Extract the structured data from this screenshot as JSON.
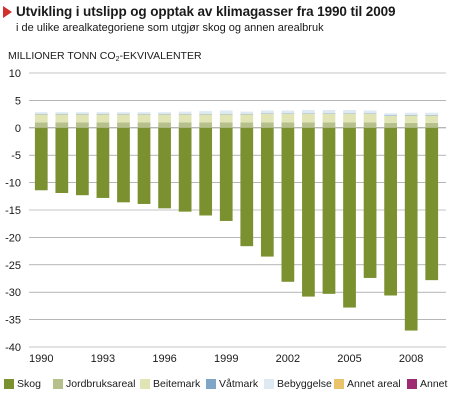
{
  "header": {
    "title": "Utvikling i utslipp og opptak av klimagasser fra 1990 til 2009",
    "subtitle": "i de ulike arealkategoriene som utgjør skog og annen arealbruk",
    "unit_label_pre": "MILLIONER TONN CO",
    "unit_label_sub": "2",
    "unit_label_post": "-EKVIVALENTER"
  },
  "colors": {
    "Skog": "#7b9130",
    "Jordbruksareal": "#b6c08a",
    "Beitemark": "#e1e5b6",
    "Vatmark": "#7fa6c7",
    "Bebyggelse": "#dfe9f1",
    "AnnetAreal": "#eac46b",
    "Annet": "#9e2a73",
    "grid": "#8a8a8a"
  },
  "legend": [
    {
      "key": "Skog",
      "label": "Skog"
    },
    {
      "key": "Jordbruksareal",
      "label": "Jordbruksareal"
    },
    {
      "key": "Beitemark",
      "label": "Beitemark"
    },
    {
      "key": "Vatmark",
      "label": "Våtmark"
    },
    {
      "key": "Bebyggelse",
      "label": "Bebyggelse"
    },
    {
      "key": "AnnetAreal",
      "label": "Annet areal"
    },
    {
      "key": "Annet",
      "label": "Annet"
    }
  ],
  "chart_data": {
    "type": "bar",
    "stacked": true,
    "x": [
      1990,
      1991,
      1992,
      1993,
      1994,
      1995,
      1996,
      1997,
      1998,
      1999,
      2000,
      2001,
      2002,
      2003,
      2004,
      2005,
      2006,
      2007,
      2008,
      2009
    ],
    "x_tick_labels": [
      "1990",
      "1993",
      "1996",
      "1999",
      "2002",
      "2005",
      "2008"
    ],
    "ylim": [
      -40,
      10
    ],
    "y_ticks": [
      10,
      5,
      0,
      -5,
      -10,
      -15,
      -20,
      -25,
      -30,
      -35,
      -40
    ],
    "grid": true,
    "legend_position": "bottom",
    "series": [
      {
        "name": "Skog",
        "color_key": "Skog",
        "values": [
          -11.4,
          -11.9,
          -12.3,
          -12.8,
          -13.6,
          -13.9,
          -14.7,
          -15.3,
          -16.0,
          -17.0,
          -21.6,
          -23.5,
          -28.1,
          -30.8,
          -30.3,
          -32.8,
          -27.4,
          -30.6,
          -37.0,
          -27.8
        ]
      },
      {
        "name": "Jordbruksareal",
        "color_key": "Jordbruksareal",
        "values": [
          1.0,
          1.0,
          1.0,
          1.0,
          1.0,
          1.0,
          1.0,
          1.0,
          1.0,
          1.0,
          1.0,
          1.0,
          1.0,
          1.0,
          1.0,
          1.0,
          1.0,
          0.9,
          0.9,
          0.9
        ]
      },
      {
        "name": "Beitemark",
        "color_key": "Beitemark",
        "values": [
          1.5,
          1.5,
          1.5,
          1.5,
          1.5,
          1.5,
          1.5,
          1.5,
          1.5,
          1.5,
          1.5,
          1.6,
          1.6,
          1.6,
          1.6,
          1.6,
          1.6,
          1.3,
          1.4,
          1.4
        ]
      },
      {
        "name": "Våtmark",
        "color_key": "Vatmark",
        "values": [
          0.05,
          0.05,
          0.05,
          0.05,
          0.05,
          0.05,
          0.05,
          0.05,
          0.05,
          0.05,
          0.05,
          0.05,
          0.05,
          0.05,
          0.05,
          0.05,
          0.05,
          0.05,
          0.05,
          0.05
        ]
      },
      {
        "name": "Bebyggelse",
        "color_key": "Bebyggelse",
        "values": [
          0.3,
          0.3,
          0.3,
          0.3,
          0.3,
          0.3,
          0.3,
          0.4,
          0.5,
          0.6,
          0.4,
          0.5,
          0.5,
          0.6,
          0.6,
          0.6,
          0.5,
          0.4,
          0.4,
          0.4
        ]
      },
      {
        "name": "Annet areal",
        "color_key": "AnnetAreal",
        "values": [
          0,
          0,
          0,
          0,
          0,
          0,
          0,
          0,
          0,
          0,
          0,
          0,
          0,
          0,
          0,
          0,
          0,
          0,
          0,
          0
        ]
      },
      {
        "name": "Annet",
        "color_key": "Annet",
        "values": [
          0,
          0,
          0,
          0,
          0,
          0,
          0,
          0,
          0,
          0,
          0,
          0,
          0,
          0,
          0,
          0,
          0,
          0,
          0,
          0
        ]
      }
    ]
  }
}
